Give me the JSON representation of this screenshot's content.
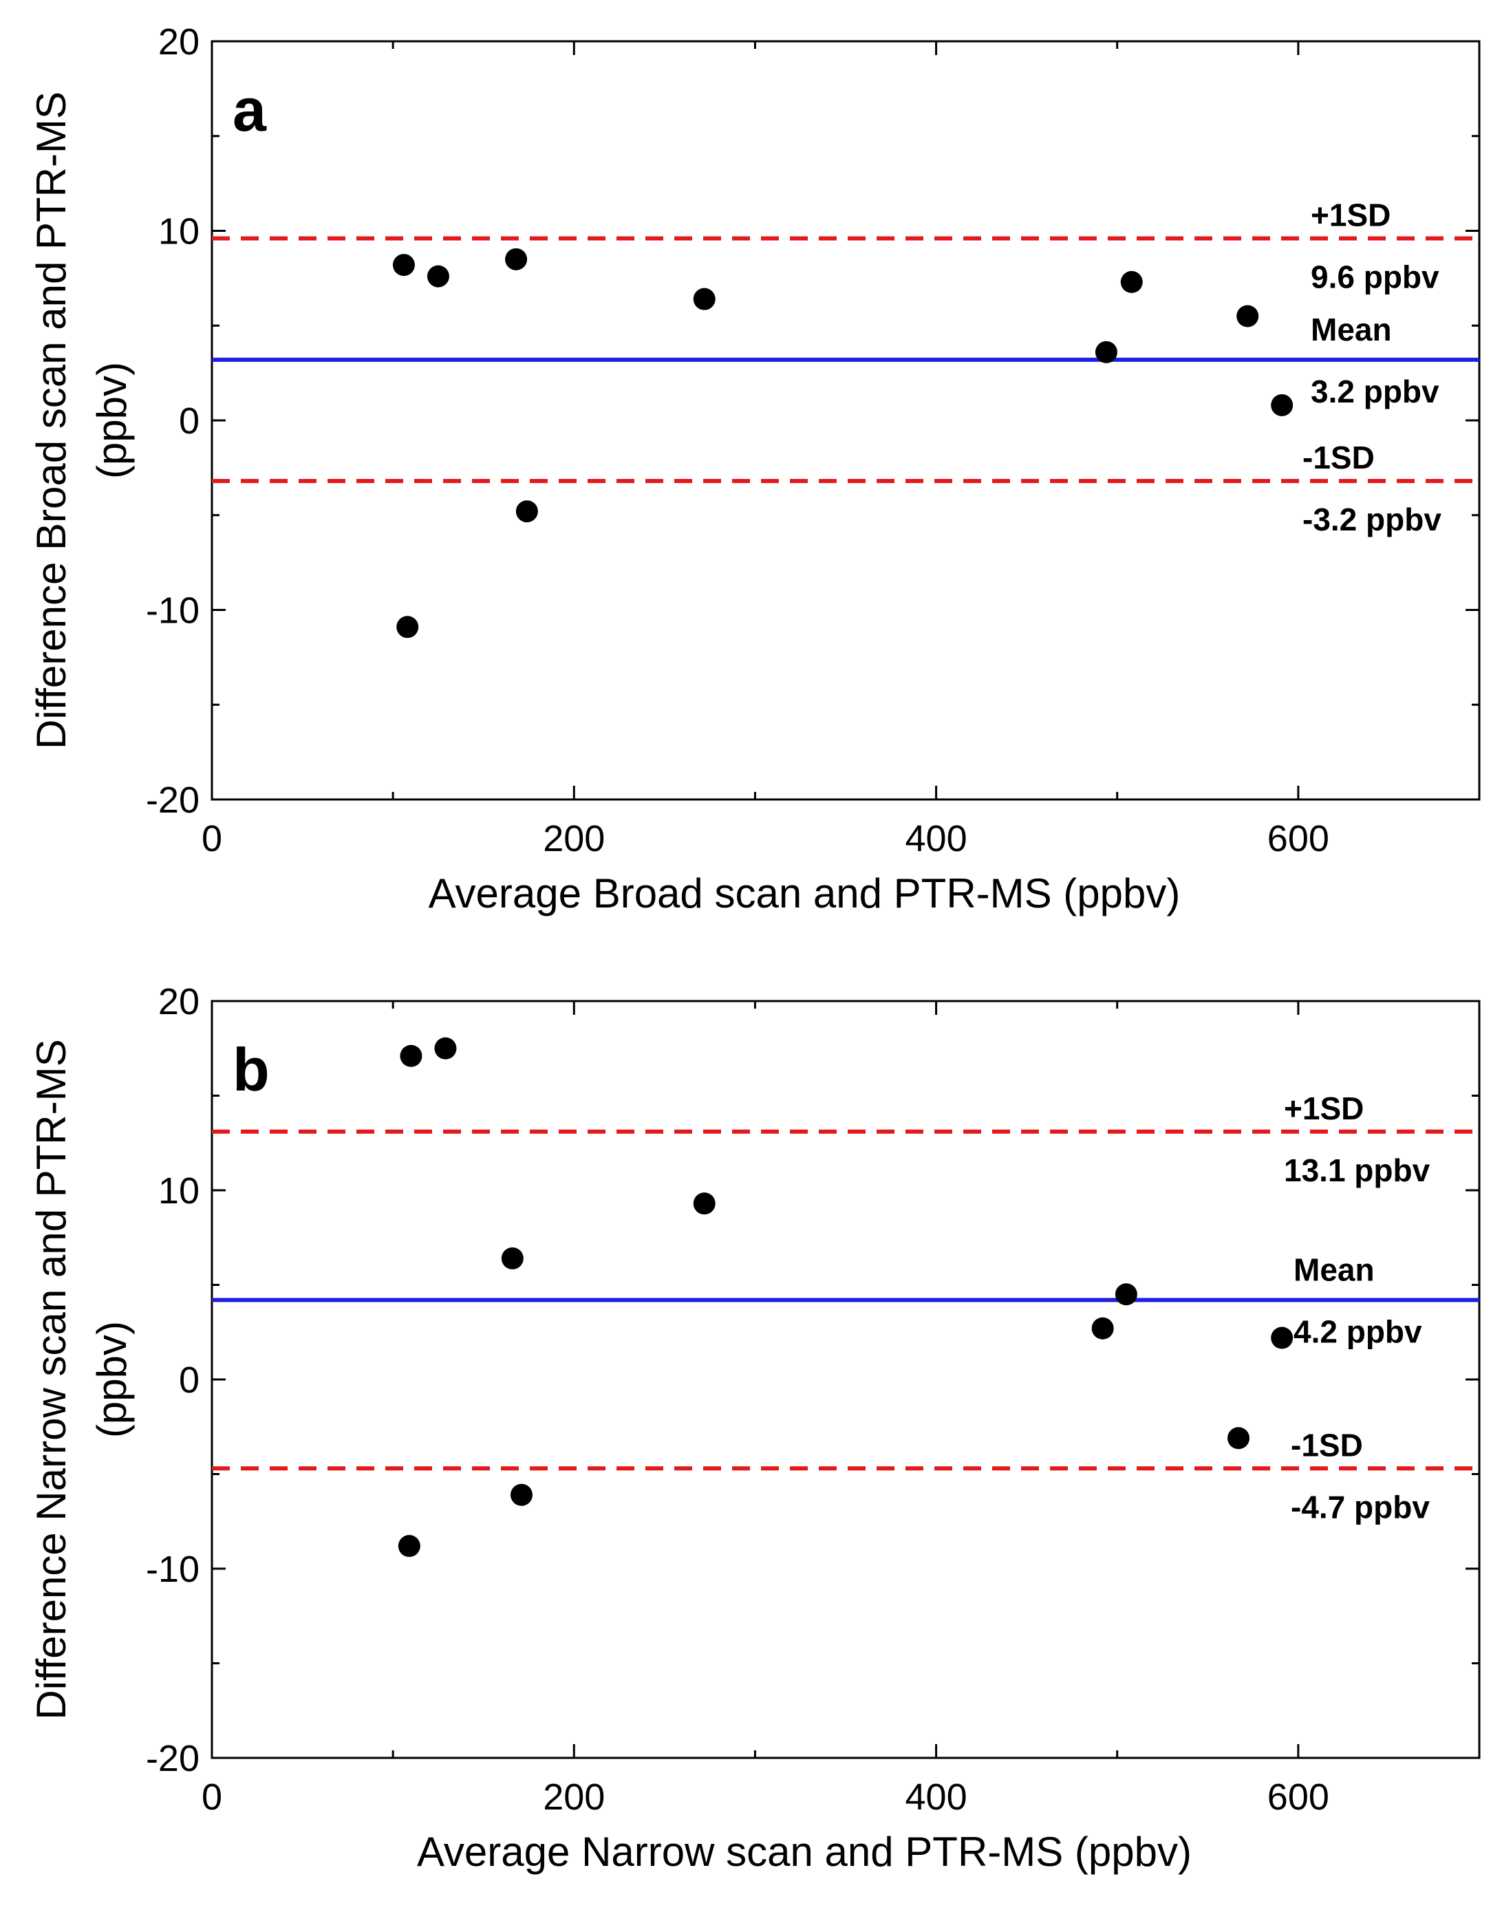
{
  "chart_data": [
    {
      "type": "scatter",
      "panel_label": "a",
      "xlabel": "Average Broad scan and PTR-MS (ppbv)",
      "ylabel_line1": "Difference Broad scan and PTR-MS",
      "ylabel_line2": "(ppbv)",
      "xlim": [
        0,
        700
      ],
      "ylim": [
        -20,
        20
      ],
      "xticks": [
        "0",
        "200",
        "400",
        "600"
      ],
      "yticks": [
        "20",
        "10",
        "0",
        "-10",
        "-20"
      ],
      "points": [
        {
          "x": 106,
          "y": 8.2
        },
        {
          "x": 125,
          "y": 7.6
        },
        {
          "x": 168,
          "y": 8.5
        },
        {
          "x": 174,
          "y": -4.8
        },
        {
          "x": 108,
          "y": -10.9
        },
        {
          "x": 272,
          "y": 6.4
        },
        {
          "x": 494,
          "y": 3.6
        },
        {
          "x": 508,
          "y": 7.3
        },
        {
          "x": 572,
          "y": 5.5
        },
        {
          "x": 591,
          "y": 0.8
        }
      ],
      "reference_lines": [
        {
          "kind": "upper",
          "value": 9.6,
          "color": "#e31a1c",
          "style": "dashed",
          "label": "+1SD",
          "value_text": "9.6 ppbv"
        },
        {
          "kind": "mean",
          "value": 3.2,
          "color": "#1f1fe0",
          "style": "solid",
          "label": "Mean",
          "value_text": "3.2 ppbv"
        },
        {
          "kind": "lower",
          "value": -3.2,
          "color": "#e31a1c",
          "style": "dashed",
          "label": "-1SD",
          "value_text": "-3.2 ppbv"
        }
      ]
    },
    {
      "type": "scatter",
      "panel_label": "b",
      "xlabel": "Average Narrow scan and PTR-MS (ppbv)",
      "ylabel_line1": "Difference Narrow scan and PTR-MS",
      "ylabel_line2": "(ppbv)",
      "xlim": [
        0,
        700
      ],
      "ylim": [
        -20,
        20
      ],
      "xticks": [
        "0",
        "200",
        "400",
        "600"
      ],
      "yticks": [
        "20",
        "10",
        "0",
        "-10",
        "-20"
      ],
      "points": [
        {
          "x": 110,
          "y": 17.1
        },
        {
          "x": 129,
          "y": 17.5
        },
        {
          "x": 166,
          "y": 6.4
        },
        {
          "x": 171,
          "y": -6.1
        },
        {
          "x": 109,
          "y": -8.8
        },
        {
          "x": 272,
          "y": 9.3
        },
        {
          "x": 492,
          "y": 2.7
        },
        {
          "x": 505,
          "y": 4.5
        },
        {
          "x": 567,
          "y": -3.1
        },
        {
          "x": 591,
          "y": 2.2
        }
      ],
      "reference_lines": [
        {
          "kind": "upper",
          "value": 13.1,
          "color": "#e31a1c",
          "style": "dashed",
          "label": "+1SD",
          "value_text": "13.1 ppbv"
        },
        {
          "kind": "mean",
          "value": 4.2,
          "color": "#1f1fe0",
          "style": "solid",
          "label": "Mean",
          "value_text": "4.2 ppbv"
        },
        {
          "kind": "lower",
          "value": -4.7,
          "color": "#e31a1c",
          "style": "dashed",
          "label": "-1SD",
          "value_text": "-4.7 ppbv"
        }
      ]
    }
  ]
}
